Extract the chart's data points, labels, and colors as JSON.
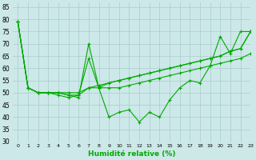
{
  "xlabel": "Humidité relative (%)",
  "background_color": "#cce8e8",
  "grid_color": "#aacccc",
  "line_color": "#00aa00",
  "marker": "+",
  "xlim": [
    -0.5,
    23
  ],
  "ylim": [
    30,
    87
  ],
  "yticks": [
    30,
    35,
    40,
    45,
    50,
    55,
    60,
    65,
    70,
    75,
    80,
    85
  ],
  "xticks": [
    0,
    1,
    2,
    3,
    4,
    5,
    6,
    7,
    8,
    9,
    10,
    11,
    12,
    13,
    14,
    15,
    16,
    17,
    18,
    19,
    20,
    21,
    22,
    23
  ],
  "series": [
    [
      79,
      52,
      50,
      50,
      50,
      50,
      50,
      52,
      53,
      54,
      55,
      56,
      57,
      58,
      59,
      60,
      61,
      62,
      63,
      64,
      65,
      67,
      68,
      75
    ],
    [
      79,
      52,
      50,
      50,
      50,
      49,
      48,
      70,
      52,
      54,
      55,
      56,
      57,
      58,
      59,
      60,
      61,
      62,
      63,
      64,
      65,
      67,
      68,
      75
    ],
    [
      79,
      52,
      50,
      50,
      49,
      48,
      49,
      64,
      52,
      40,
      42,
      43,
      38,
      42,
      40,
      47,
      52,
      55,
      54,
      61,
      73,
      66,
      75,
      75
    ],
    [
      79,
      52,
      50,
      50,
      50,
      49,
      49,
      52,
      52,
      52,
      52,
      53,
      54,
      55,
      56,
      57,
      58,
      59,
      60,
      61,
      62,
      63,
      64,
      66
    ]
  ]
}
